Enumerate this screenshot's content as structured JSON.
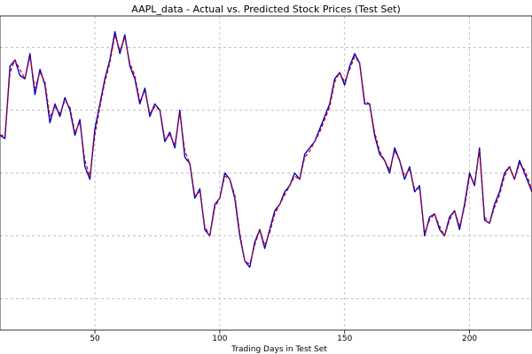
{
  "chart_data": {
    "type": "line",
    "title": "AAPL_data - Actual vs. Predicted Stock Prices (Test Set)",
    "xlabel": "Trading Days in Test Set",
    "ylabel": "",
    "xlim": [
      12,
      225
    ],
    "ylim": [
      0,
      100
    ],
    "xticks": [
      50,
      100,
      150,
      200
    ],
    "ygrid": [
      10,
      30,
      50,
      70,
      90
    ],
    "grid": true,
    "series": [
      {
        "name": "",
        "color": "#0000cc",
        "style": "solid",
        "x": [
          12,
          14,
          16,
          18,
          20,
          22,
          24,
          26,
          28,
          30,
          32,
          34,
          36,
          38,
          40,
          42,
          44,
          46,
          48,
          50,
          52,
          54,
          56,
          58,
          60,
          62,
          64,
          66,
          68,
          70,
          72,
          74,
          76,
          78,
          80,
          82,
          84,
          86,
          88,
          90,
          92,
          94,
          96,
          98,
          100,
          102,
          104,
          106,
          108,
          110,
          112,
          114,
          116,
          118,
          120,
          122,
          124,
          126,
          128,
          130,
          132,
          134,
          136,
          138,
          140,
          142,
          144,
          146,
          148,
          150,
          152,
          154,
          156,
          158,
          160,
          162,
          164,
          166,
          168,
          170,
          172,
          174,
          176,
          178,
          180,
          182,
          184,
          186,
          188,
          190,
          192,
          194,
          196,
          198,
          200,
          202,
          204,
          206,
          208,
          210,
          212,
          214,
          216,
          218,
          220,
          222,
          224,
          225
        ],
        "y": [
          62,
          61,
          84,
          86,
          81,
          80,
          88,
          75,
          83,
          78,
          66,
          72,
          68,
          74,
          70,
          62,
          67,
          52,
          48,
          64,
          72,
          80,
          86,
          95,
          88,
          94,
          84,
          80,
          72,
          77,
          68,
          72,
          70,
          60,
          63,
          58,
          70,
          55,
          53,
          42,
          45,
          32,
          30,
          40,
          42,
          50,
          48,
          42,
          30,
          22,
          20,
          28,
          32,
          26,
          32,
          38,
          40,
          44,
          46,
          50,
          48,
          56,
          58,
          60,
          64,
          68,
          72,
          80,
          82,
          78,
          84,
          88,
          85,
          72,
          72,
          62,
          56,
          54,
          50,
          58,
          54,
          48,
          52,
          44,
          46,
          30,
          36,
          37,
          32,
          30,
          36,
          38,
          32,
          40,
          50,
          46,
          58,
          35,
          34,
          40,
          44,
          50,
          52,
          48,
          54,
          50,
          46,
          44
        ]
      },
      {
        "name": "",
        "color": "#cc0000",
        "style": "dashed",
        "x": [
          12,
          14,
          16,
          18,
          20,
          22,
          24,
          26,
          28,
          30,
          32,
          34,
          36,
          38,
          40,
          42,
          44,
          46,
          48,
          50,
          52,
          54,
          56,
          58,
          60,
          62,
          64,
          66,
          68,
          70,
          72,
          74,
          76,
          78,
          80,
          82,
          84,
          86,
          88,
          90,
          92,
          94,
          96,
          98,
          100,
          102,
          104,
          106,
          108,
          110,
          112,
          114,
          116,
          118,
          120,
          122,
          124,
          126,
          128,
          130,
          132,
          134,
          136,
          138,
          140,
          142,
          144,
          146,
          148,
          150,
          152,
          154,
          156,
          158,
          160,
          162,
          164,
          166,
          168,
          170,
          172,
          174,
          176,
          178,
          180,
          182,
          184,
          186,
          188,
          190,
          192,
          194,
          196,
          198,
          200,
          202,
          204,
          206,
          208,
          210,
          212,
          214,
          216,
          218,
          220,
          222,
          224,
          225
        ],
        "y": [
          62,
          62,
          82,
          86,
          83,
          80,
          87,
          77,
          82,
          79,
          68,
          71,
          69,
          73,
          71,
          63,
          66,
          54,
          49,
          62,
          71,
          79,
          85,
          94,
          89,
          93,
          85,
          81,
          73,
          76,
          69,
          71,
          70,
          61,
          62,
          59,
          69,
          57,
          53,
          43,
          44,
          33,
          30,
          39,
          42,
          49,
          48,
          43,
          31,
          22,
          21,
          27,
          32,
          27,
          31,
          37,
          40,
          43,
          46,
          49,
          48,
          55,
          57,
          60,
          63,
          67,
          71,
          79,
          82,
          79,
          83,
          87,
          85,
          73,
          72,
          63,
          57,
          54,
          51,
          57,
          54,
          49,
          51,
          45,
          45,
          31,
          35,
          37,
          33,
          30,
          35,
          38,
          33,
          39,
          49,
          47,
          57,
          36,
          34,
          39,
          43,
          49,
          52,
          48,
          53,
          51,
          47,
          44
        ]
      }
    ]
  }
}
